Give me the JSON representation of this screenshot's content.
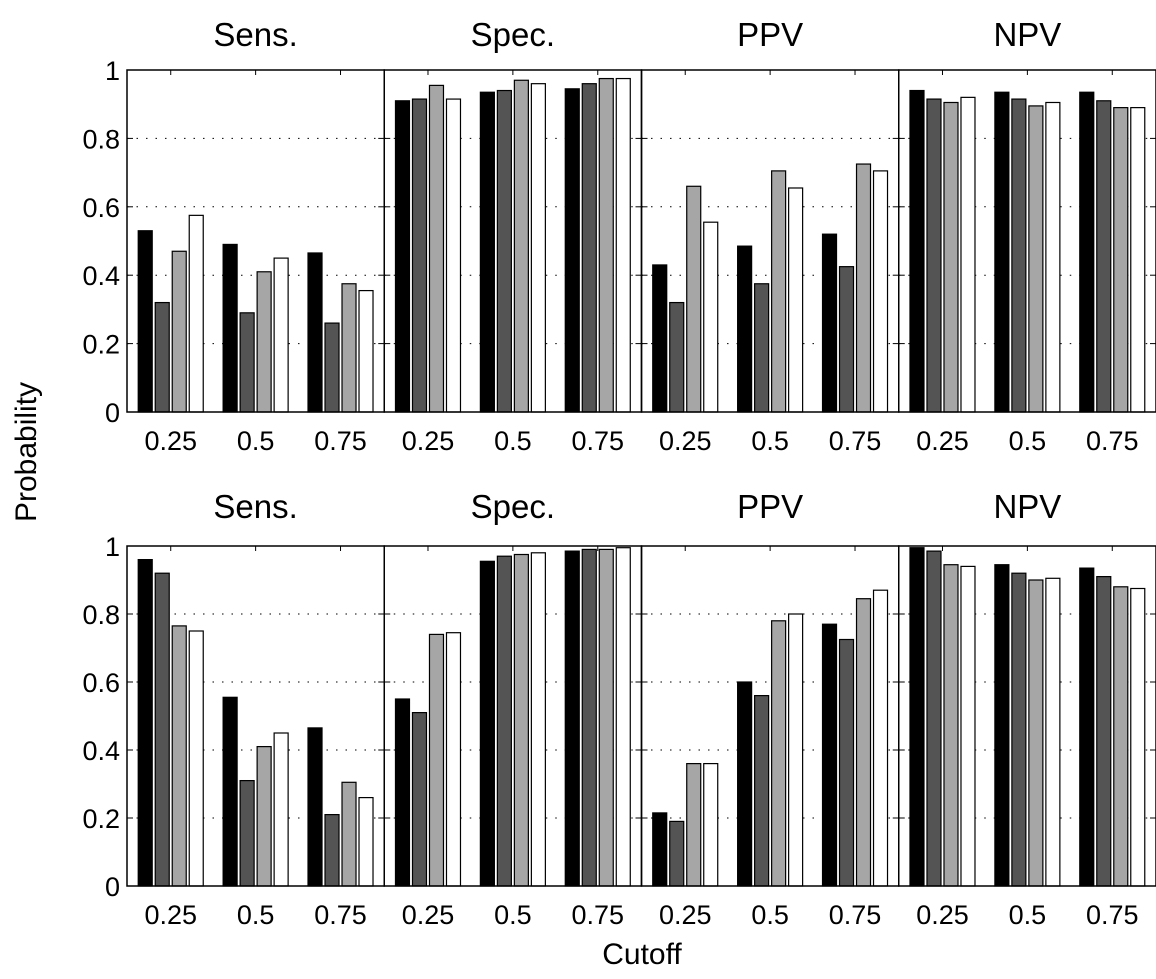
{
  "figure": {
    "ylabel": "Probability",
    "xlabel": "Cutoff"
  },
  "chart_data": {
    "type": "bar",
    "panel_titles": [
      "Sens.",
      "Spec.",
      "PPV",
      "NPV"
    ],
    "categories": [
      "0.25",
      "0.5",
      "0.75"
    ],
    "ylim": [
      0,
      1
    ],
    "yticks": [
      "0",
      "0.2",
      "0.4",
      "0.6",
      "0.8",
      "1"
    ],
    "grid": true,
    "legend": "none",
    "series_colors": [
      "#000000",
      "#545454",
      "#a6a6a6",
      "#ffffff"
    ],
    "rows": [
      {
        "panels": [
          {
            "title": "Sens.",
            "values": [
              [
                0.53,
                0.32,
                0.47,
                0.575
              ],
              [
                0.49,
                0.29,
                0.41,
                0.45
              ],
              [
                0.465,
                0.26,
                0.375,
                0.355
              ]
            ]
          },
          {
            "title": "Spec.",
            "values": [
              [
                0.91,
                0.915,
                0.955,
                0.915
              ],
              [
                0.935,
                0.94,
                0.97,
                0.96
              ],
              [
                0.945,
                0.96,
                0.975,
                0.975
              ]
            ]
          },
          {
            "title": "PPV",
            "values": [
              [
                0.43,
                0.32,
                0.66,
                0.555
              ],
              [
                0.485,
                0.375,
                0.705,
                0.655
              ],
              [
                0.52,
                0.425,
                0.725,
                0.705
              ]
            ]
          },
          {
            "title": "NPV",
            "values": [
              [
                0.94,
                0.915,
                0.905,
                0.92
              ],
              [
                0.935,
                0.915,
                0.895,
                0.905
              ],
              [
                0.935,
                0.91,
                0.89,
                0.89
              ]
            ]
          }
        ]
      },
      {
        "panels": [
          {
            "title": "Sens.",
            "values": [
              [
                0.96,
                0.92,
                0.765,
                0.75
              ],
              [
                0.555,
                0.31,
                0.41,
                0.45
              ],
              [
                0.465,
                0.21,
                0.305,
                0.26
              ]
            ]
          },
          {
            "title": "Spec.",
            "values": [
              [
                0.55,
                0.51,
                0.74,
                0.745
              ],
              [
                0.955,
                0.97,
                0.975,
                0.98
              ],
              [
                0.985,
                0.99,
                0.99,
                0.995
              ]
            ]
          },
          {
            "title": "PPV",
            "values": [
              [
                0.215,
                0.19,
                0.36,
                0.36
              ],
              [
                0.6,
                0.56,
                0.78,
                0.8
              ],
              [
                0.77,
                0.725,
                0.845,
                0.87
              ]
            ]
          },
          {
            "title": "NPV",
            "values": [
              [
                0.995,
                0.985,
                0.945,
                0.94
              ],
              [
                0.945,
                0.92,
                0.9,
                0.905
              ],
              [
                0.935,
                0.91,
                0.88,
                0.875
              ]
            ]
          }
        ]
      }
    ]
  }
}
